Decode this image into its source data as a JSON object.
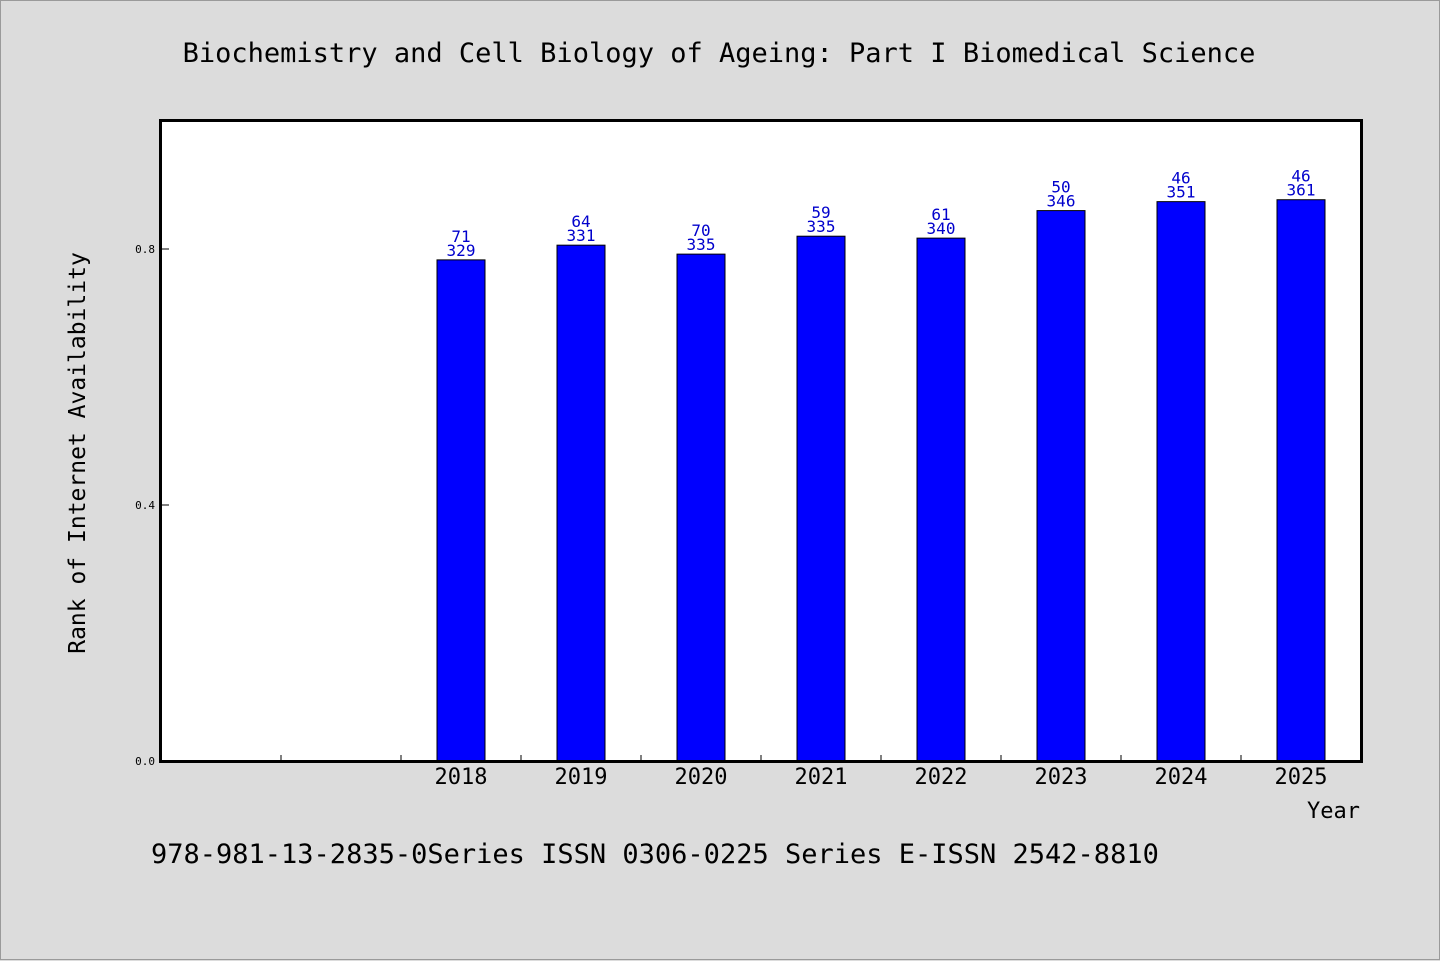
{
  "chart_data": {
    "type": "bar",
    "title": "Biochemistry and Cell Biology of Ageing: Part I Biomedical Science",
    "xlabel": "Year",
    "ylabel": "Rank of Internet Availability",
    "categories": [
      "",
      "",
      "2018",
      "2019",
      "2020",
      "2021",
      "2022",
      "2023",
      "2024",
      "2025"
    ],
    "series": [
      {
        "values": [
          null,
          null,
          0.783,
          0.806,
          0.792,
          0.82,
          0.817,
          0.86,
          0.874,
          0.877
        ],
        "labels_top": [
          "",
          "",
          "71",
          "64",
          "70",
          "59",
          "61",
          "50",
          "46",
          "46"
        ],
        "labels_bottom": [
          "",
          "",
          "329",
          "331",
          "335",
          "335",
          "340",
          "346",
          "351",
          "361"
        ],
        "color": "#0000ff"
      }
    ],
    "ylim": [
      0,
      1.0
    ],
    "yticks": [
      0.0,
      0.4,
      0.8
    ],
    "ytick_labels": [
      "0.0",
      "0.4",
      "0.8"
    ],
    "grid": false,
    "legend": "none"
  },
  "footer": "978-981-13-2835-0Series ISSN 0306-0225 Series E-ISSN 2542-8810",
  "colors": {
    "bar": "#0000ff",
    "data_label": "#0000cc",
    "background": "#dcdcdc",
    "plot_area": "#ffffff"
  }
}
